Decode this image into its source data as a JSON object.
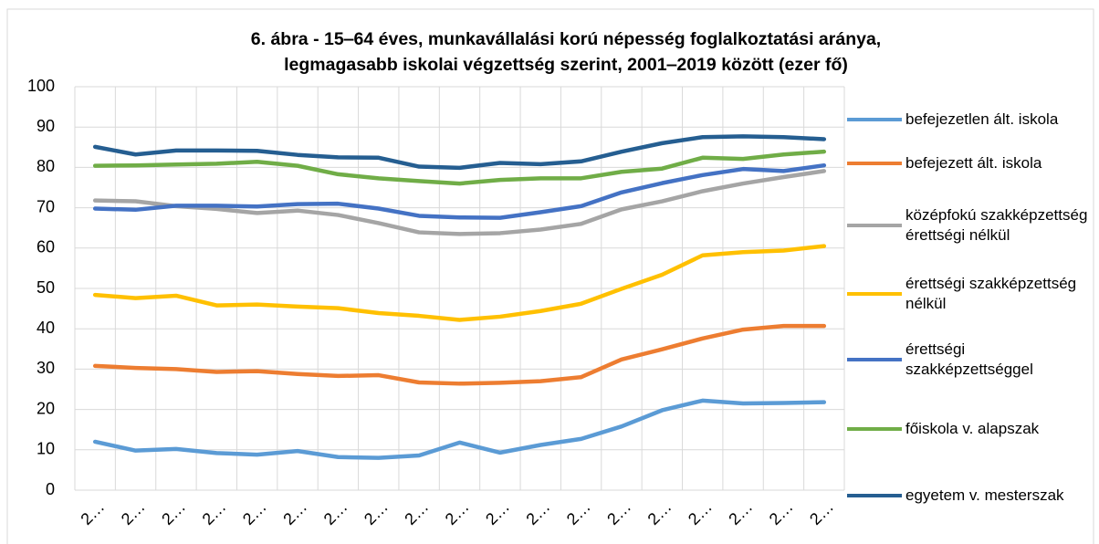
{
  "chart_data": {
    "type": "line",
    "title": [
      "6. ábra - 15‒64 éves, munkavállalási korú népesség foglalkoztatási aránya,",
      "legmagasabb iskolai végzettség szerint, 2001‒2019 között (ezer fő)"
    ],
    "categories": [
      "2…",
      "2…",
      "2…",
      "2…",
      "2…",
      "2…",
      "2…",
      "2…",
      "2…",
      "2…",
      "2…",
      "2…",
      "2…",
      "2…",
      "2…",
      "2…",
      "2…",
      "2…",
      "2…"
    ],
    "ylim": [
      0,
      100
    ],
    "yticks": [
      0,
      10,
      20,
      30,
      40,
      50,
      60,
      70,
      80,
      90,
      100
    ],
    "grid": true,
    "legend": "right",
    "series": [
      {
        "name": "befejezetlen ált. iskola",
        "color": "#5b9bd5",
        "values": [
          12,
          9.8,
          10.2,
          9.2,
          8.8,
          9.7,
          8.2,
          8,
          8.6,
          11.8,
          9.3,
          11.2,
          12.7,
          15.8,
          19.8,
          22.2,
          21.5,
          21.6,
          21.8
        ]
      },
      {
        "name": "befejezett ált. iskola",
        "color": "#ed7d31",
        "values": [
          30.8,
          30.3,
          30,
          29.3,
          29.5,
          28.8,
          28.3,
          28.5,
          26.7,
          26.4,
          26.6,
          27,
          28,
          32.4,
          34.9,
          37.6,
          39.8,
          40.7,
          40.7
        ]
      },
      {
        "name": "középfokú szakképzettség érettségi nélkül",
        "color": "#a5a5a5",
        "values": [
          71.8,
          71.6,
          70.4,
          69.7,
          68.7,
          69.3,
          68.2,
          66.2,
          63.9,
          63.5,
          63.7,
          64.6,
          66,
          69.6,
          71.6,
          74.1,
          76,
          77.6,
          79.1
        ]
      },
      {
        "name": "érettségi szakképzettség nélkül",
        "color": "#ffc000",
        "values": [
          48.4,
          47.6,
          48.2,
          45.8,
          46,
          45.5,
          45.1,
          43.9,
          43.2,
          42.2,
          43,
          44.4,
          46.2,
          49.9,
          53.4,
          58.2,
          59,
          59.4,
          60.5
        ]
      },
      {
        "name": "érettségi szakképzettséggel",
        "color": "#4472c4",
        "values": [
          69.8,
          69.5,
          70.5,
          70.5,
          70.3,
          70.9,
          71,
          69.8,
          68,
          67.6,
          67.5,
          68.9,
          70.4,
          73.8,
          76.1,
          78.1,
          79.6,
          79.1,
          80.5
        ]
      },
      {
        "name": "főiskola v. alapszak",
        "color": "#70ad47",
        "values": [
          80.4,
          80.5,
          80.7,
          80.9,
          81.4,
          80.4,
          78.3,
          77.3,
          76.6,
          76,
          76.9,
          77.3,
          77.3,
          78.9,
          79.7,
          82.4,
          82.1,
          83.2,
          83.9
        ]
      },
      {
        "name": "egyetem v. mesterszak",
        "color": "#255e91",
        "values": [
          85.1,
          83.2,
          84.2,
          84.2,
          84.1,
          83.1,
          82.5,
          82.4,
          80.2,
          79.9,
          81.1,
          80.8,
          81.5,
          83.9,
          86,
          87.5,
          87.7,
          87.5,
          87
        ]
      }
    ]
  }
}
